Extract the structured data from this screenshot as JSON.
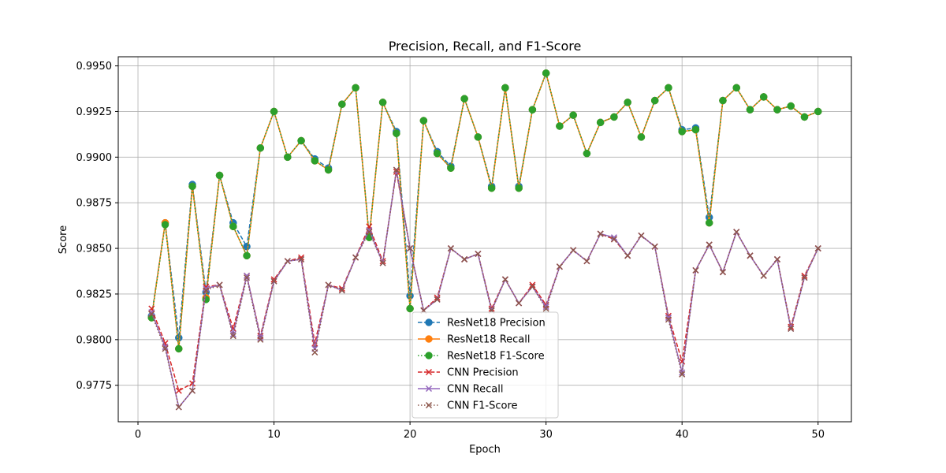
{
  "chart_data": {
    "type": "line",
    "title": "Precision, Recall, and F1-Score",
    "xlabel": "Epoch",
    "ylabel": "Score",
    "xlim": [
      -1.45,
      52.45
    ],
    "ylim": [
      0.9755,
      0.9955
    ],
    "x_ticks": [
      0,
      10,
      20,
      30,
      40,
      50
    ],
    "x_tick_labels": [
      "0",
      "10",
      "20",
      "30",
      "40",
      "50"
    ],
    "y_ticks": [
      0.9775,
      0.98,
      0.9825,
      0.985,
      0.9875,
      0.99,
      0.9925,
      0.995
    ],
    "y_tick_labels": [
      "0.9775",
      "0.9800",
      "0.9825",
      "0.9850",
      "0.9875",
      "0.9900",
      "0.9925",
      "0.9950"
    ],
    "grid": true,
    "legend_position": "lower-center",
    "x": [
      1,
      2,
      3,
      4,
      5,
      6,
      7,
      8,
      9,
      10,
      11,
      12,
      13,
      14,
      15,
      16,
      17,
      18,
      19,
      20,
      21,
      22,
      23,
      24,
      25,
      26,
      27,
      28,
      29,
      30,
      31,
      32,
      33,
      34,
      35,
      36,
      37,
      38,
      39,
      40,
      41,
      42,
      43,
      44,
      45,
      46,
      47,
      48,
      49,
      50
    ],
    "series": [
      {
        "name": "ResNet18 Precision",
        "color": "#1f77b4",
        "linestyle": "dashed",
        "marker": "circle",
        "values": [
          0.9813,
          0.9864,
          0.9801,
          0.9885,
          0.9826,
          0.989,
          0.9864,
          0.9851,
          0.9905,
          0.9925,
          0.99,
          0.9909,
          0.9899,
          0.9894,
          0.9929,
          0.9938,
          0.9857,
          0.993,
          0.9914,
          0.9824,
          0.992,
          0.9903,
          0.9895,
          0.9932,
          0.9911,
          0.9884,
          0.9938,
          0.9884,
          0.9926,
          0.9946,
          0.9917,
          0.9923,
          0.9902,
          0.9919,
          0.9922,
          0.993,
          0.9911,
          0.9931,
          0.9938,
          0.9915,
          0.9916,
          0.9867,
          0.9931,
          0.9938,
          0.9926,
          0.9933,
          0.9926,
          0.9928,
          0.9922,
          0.9925
        ]
      },
      {
        "name": "ResNet18 Recall",
        "color": "#ff7f0e",
        "linestyle": "solid",
        "marker": "circle",
        "values": [
          0.9812,
          0.9864,
          0.9795,
          0.9884,
          0.9823,
          0.989,
          0.9862,
          0.9846,
          0.9905,
          0.9925,
          0.99,
          0.9909,
          0.9898,
          0.9893,
          0.9929,
          0.9938,
          0.9856,
          0.993,
          0.9913,
          0.9817,
          0.992,
          0.9902,
          0.9894,
          0.9932,
          0.9911,
          0.9883,
          0.9938,
          0.9883,
          0.9926,
          0.9946,
          0.9917,
          0.9923,
          0.9902,
          0.9919,
          0.9922,
          0.993,
          0.9911,
          0.9931,
          0.9938,
          0.9914,
          0.9915,
          0.9864,
          0.9931,
          0.9938,
          0.9926,
          0.9933,
          0.9926,
          0.9928,
          0.9922,
          0.9925
        ]
      },
      {
        "name": "ResNet18 F1-Score",
        "color": "#2ca02c",
        "linestyle": "dotted",
        "marker": "circle",
        "values": [
          0.9812,
          0.9863,
          0.9795,
          0.9884,
          0.9822,
          0.989,
          0.9862,
          0.9846,
          0.9905,
          0.9925,
          0.99,
          0.9909,
          0.9898,
          0.9893,
          0.9929,
          0.9938,
          0.9856,
          0.993,
          0.9913,
          0.9817,
          0.992,
          0.9902,
          0.9894,
          0.9932,
          0.9911,
          0.9883,
          0.9938,
          0.9883,
          0.9926,
          0.9946,
          0.9917,
          0.9923,
          0.9902,
          0.9919,
          0.9922,
          0.993,
          0.9911,
          0.9931,
          0.9938,
          0.9914,
          0.9915,
          0.9864,
          0.9931,
          0.9938,
          0.9926,
          0.9933,
          0.9926,
          0.9928,
          0.9922,
          0.9925
        ]
      },
      {
        "name": "CNN Precision",
        "color": "#d62728",
        "linestyle": "dashed",
        "marker": "x",
        "values": [
          0.9817,
          0.9798,
          0.9772,
          0.9776,
          0.9829,
          0.983,
          0.9806,
          0.9835,
          0.9802,
          0.9833,
          0.9843,
          0.9845,
          0.9798,
          0.983,
          0.9828,
          0.9845,
          0.9862,
          0.9843,
          0.9892,
          0.985,
          0.9816,
          0.9823,
          0.985,
          0.9844,
          0.9847,
          0.9817,
          0.9833,
          0.982,
          0.983,
          0.9819,
          0.984,
          0.9849,
          0.9843,
          0.9858,
          0.9855,
          0.9846,
          0.9857,
          0.9851,
          0.9813,
          0.9788,
          0.9838,
          0.9852,
          0.9837,
          0.9859,
          0.9846,
          0.9835,
          0.9844,
          0.9807,
          0.9835,
          0.985
        ]
      },
      {
        "name": "CNN Recall",
        "color": "#9467bd",
        "linestyle": "solid",
        "marker": "x",
        "values": [
          0.9815,
          0.9796,
          0.9763,
          0.9772,
          0.9828,
          0.983,
          0.9803,
          0.9835,
          0.9801,
          0.9832,
          0.9843,
          0.9844,
          0.9795,
          0.983,
          0.9827,
          0.9845,
          0.986,
          0.9842,
          0.9893,
          0.985,
          0.9816,
          0.9822,
          0.985,
          0.9844,
          0.9847,
          0.9816,
          0.9833,
          0.982,
          0.9829,
          0.9818,
          0.984,
          0.9849,
          0.9843,
          0.9858,
          0.9856,
          0.9846,
          0.9857,
          0.9851,
          0.9812,
          0.9782,
          0.9838,
          0.9852,
          0.9837,
          0.9859,
          0.9846,
          0.9835,
          0.9844,
          0.9806,
          0.9834,
          0.985
        ]
      },
      {
        "name": "CNN F1-Score",
        "color": "#8c564b",
        "linestyle": "dotted",
        "marker": "x",
        "values": [
          0.9814,
          0.9795,
          0.9763,
          0.9772,
          0.9827,
          0.983,
          0.9802,
          0.9834,
          0.98,
          0.9832,
          0.9843,
          0.9844,
          0.9793,
          0.983,
          0.9827,
          0.9845,
          0.9859,
          0.9842,
          0.9893,
          0.985,
          0.9816,
          0.9822,
          0.985,
          0.9844,
          0.9847,
          0.9816,
          0.9833,
          0.982,
          0.9829,
          0.9817,
          0.984,
          0.9849,
          0.9843,
          0.9858,
          0.9855,
          0.9846,
          0.9857,
          0.9851,
          0.9811,
          0.9781,
          0.9838,
          0.9852,
          0.9837,
          0.9859,
          0.9846,
          0.9835,
          0.9844,
          0.9806,
          0.9834,
          0.985
        ]
      }
    ]
  }
}
